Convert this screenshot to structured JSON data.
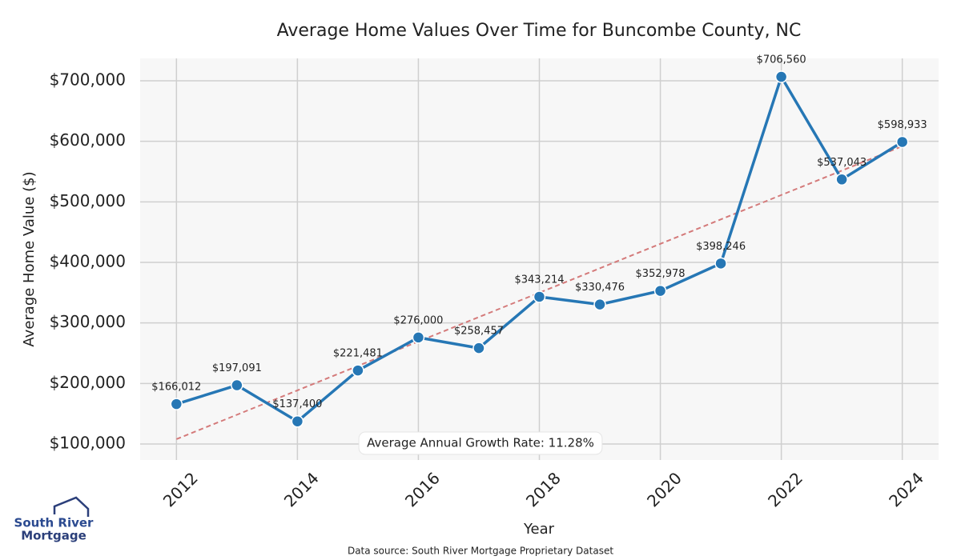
{
  "chart_data": {
    "type": "line",
    "title": "Average Home Values Over Time for Buncombe County, NC",
    "x_label": "Year",
    "y_label": "Average Home Value ($)",
    "x": [
      2012,
      2013,
      2014,
      2015,
      2016,
      2017,
      2018,
      2019,
      2020,
      2021,
      2022,
      2023,
      2024
    ],
    "series": [
      {
        "color": "#2677b5",
        "values": [
          166012,
          197091,
          137400,
          221481,
          276000,
          258457,
          343214,
          330476,
          352978,
          398246,
          706560,
          537043,
          598933
        ],
        "value_labels": [
          "$166,012",
          "$197,091",
          "$137,400",
          "$221,481",
          "$276,000",
          "$258,457",
          "$343,214",
          "$330,476",
          "$352,978",
          "$398,246",
          "$706,560",
          "$537,043",
          "$598,933"
        ]
      }
    ],
    "trend_line": {
      "x": [
        2012,
        2024
      ],
      "values": [
        108000,
        592000
      ],
      "color": "#d47a7a",
      "dashed": true
    },
    "annotation": "Average Annual Growth Rate: 11.28%",
    "xlim": [
      2011.4,
      2024.6
    ],
    "xticks": [
      2012,
      2014,
      2016,
      2018,
      2020,
      2022,
      2024
    ],
    "ylim": [
      73600,
      737000
    ],
    "yticks": [
      {
        "value": 100000,
        "label": "$100,000"
      },
      {
        "value": 200000,
        "label": "$200,000"
      },
      {
        "value": 300000,
        "label": "$300,000"
      },
      {
        "value": 400000,
        "label": "$400,000"
      },
      {
        "value": 500000,
        "label": "$500,000"
      },
      {
        "value": 600000,
        "label": "$600,000"
      },
      {
        "value": 700000,
        "label": "$700,000"
      }
    ],
    "grid": true,
    "source": "Data source: South River Mortgage Proprietary Dataset",
    "logo": [
      "South River",
      "Mortgage"
    ]
  }
}
